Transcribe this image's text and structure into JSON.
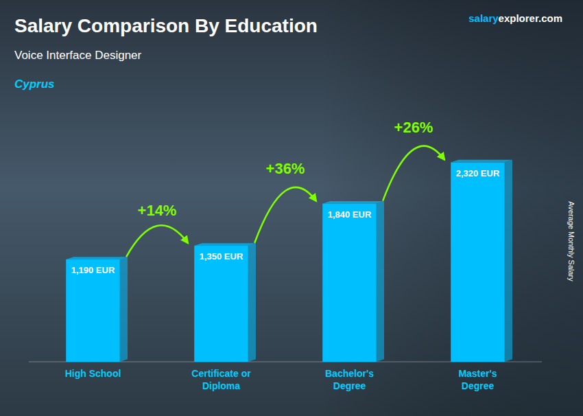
{
  "chart_data": {
    "type": "bar",
    "title": "Salary Comparison By Education",
    "subtitle": "Voice Interface Designer",
    "country": "Cyprus",
    "brand": [
      "salary",
      "explorer.com"
    ],
    "ylabel": "Average Monthly Salary",
    "categories": [
      "High School",
      "Certificate or\nDiploma",
      "Bachelor's\nDegree",
      "Master's\nDegree"
    ],
    "values": [
      1190,
      1350,
      1840,
      2320
    ],
    "value_labels": [
      "1,190 EUR",
      "1,350 EUR",
      "1,840 EUR",
      "2,320 EUR"
    ],
    "data_labels": true,
    "annotations": [
      "+14%",
      "+36%",
      "+26%"
    ],
    "color": "#00BFFF",
    "ylim": [
      0,
      2900
    ],
    "tick_labels": "x",
    "grid": false
  }
}
